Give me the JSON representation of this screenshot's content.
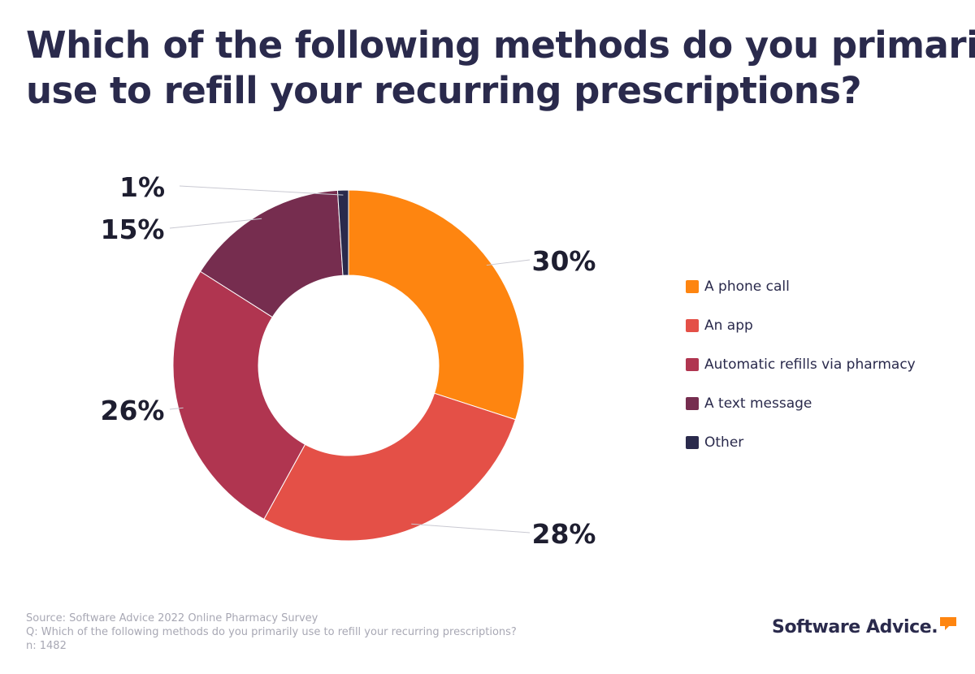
{
  "title": {
    "line1": "Which of the following methods do you primarily",
    "line2": "use to refill your recurring prescriptions?"
  },
  "chart_data": {
    "type": "pie",
    "variant": "donut",
    "legend_position": "right",
    "categories": [
      "A phone call",
      "An app",
      "Automatic refills via pharmacy",
      "A text message",
      "Other"
    ],
    "values": [
      30,
      28,
      26,
      15,
      1
    ],
    "data_labels": [
      "30%",
      "28%",
      "26%",
      "15%",
      "1%"
    ],
    "unit": "%",
    "colors": [
      "#fe8510",
      "#e45047",
      "#b03550",
      "#762d4f",
      "#2a2a4c"
    ]
  },
  "footer": {
    "source": "Source: Software Advice 2022 Online Pharmacy Survey",
    "question": "Q: Which of the following methods do you primarily use to refill your recurring prescriptions?",
    "n": "n: 1482"
  },
  "brand": {
    "name": "Software Advice",
    "mark": ".",
    "accent_color": "#fe8510",
    "icon": "speech-bubble-icon"
  }
}
